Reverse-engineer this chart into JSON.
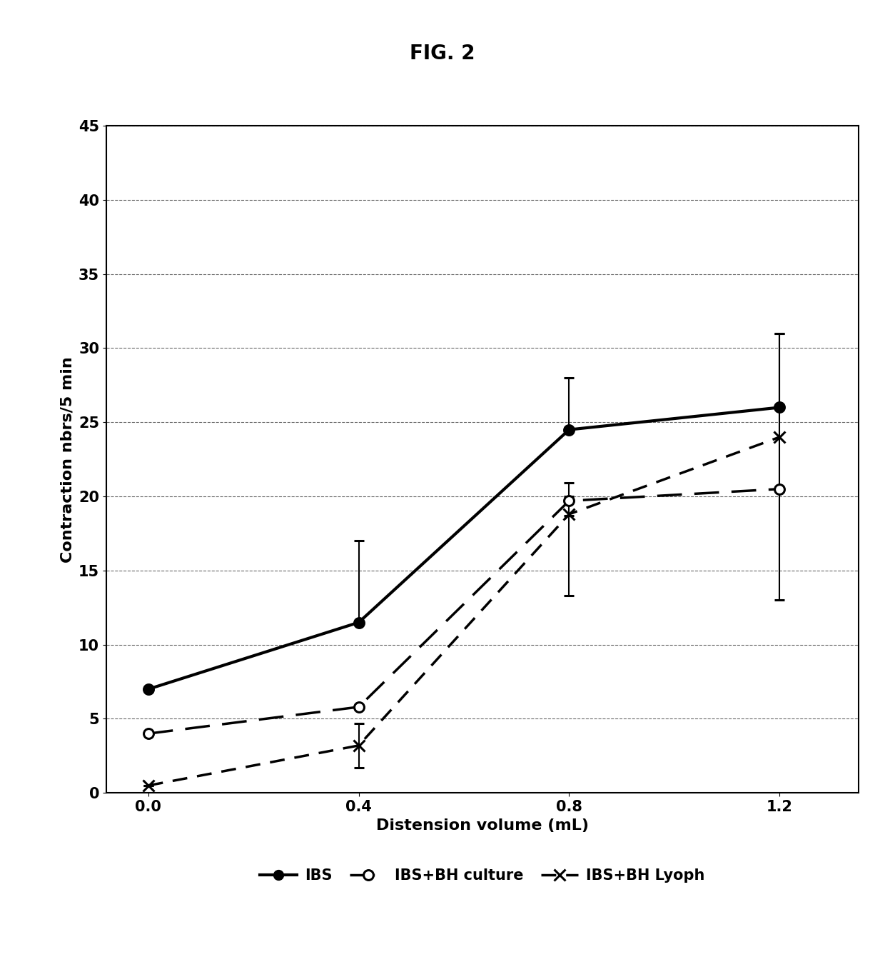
{
  "title": "FIG. 2",
  "xlabel": "Distension volume (mL)",
  "ylabel": "Contraction nbrs/5 min",
  "x": [
    0,
    0.4,
    0.8,
    1.2
  ],
  "series": {
    "IBS": {
      "y": [
        7,
        11.5,
        24.5,
        26
      ],
      "yerr_low": [
        0,
        0,
        0,
        0
      ],
      "yerr_high": [
        0,
        5.5,
        3.5,
        5
      ],
      "linestyle": "solid",
      "linewidth": 3.0,
      "marker": "o",
      "markersize": 10,
      "markerfacecolor": "black",
      "markeredgecolor": "black",
      "color": "black",
      "dashes": []
    },
    "IBS+BH culture": {
      "y": [
        4,
        5.8,
        19.7,
        20.5
      ],
      "yerr_low": [
        0,
        0,
        1.0,
        0
      ],
      "yerr_high": [
        0,
        0,
        1.2,
        0
      ],
      "linestyle": "dashed",
      "linewidth": 2.5,
      "marker": "o",
      "markersize": 10,
      "markerfacecolor": "white",
      "markeredgecolor": "black",
      "color": "black",
      "dashes": [
        10,
        5
      ]
    },
    "IBS+BH Lyoph": {
      "y": [
        0.5,
        3.2,
        18.8,
        24
      ],
      "yerr_low": [
        0,
        1.5,
        5.5,
        11
      ],
      "yerr_high": [
        0,
        1.5,
        1.2,
        7
      ],
      "linestyle": "dashed",
      "linewidth": 2.5,
      "marker": "x",
      "markersize": 12,
      "markerfacecolor": "black",
      "markeredgecolor": "black",
      "color": "black",
      "dashes": [
        6,
        4
      ]
    }
  },
  "ylim": [
    0,
    45
  ],
  "yticks": [
    0,
    5,
    10,
    15,
    20,
    25,
    30,
    35,
    40,
    45
  ],
  "xlim": [
    -0.08,
    1.35
  ],
  "xticks": [
    0,
    0.4,
    0.8,
    1.2
  ],
  "background_color": "white",
  "title_fontsize": 20,
  "axis_label_fontsize": 16,
  "tick_fontsize": 15,
  "legend_fontsize": 15
}
